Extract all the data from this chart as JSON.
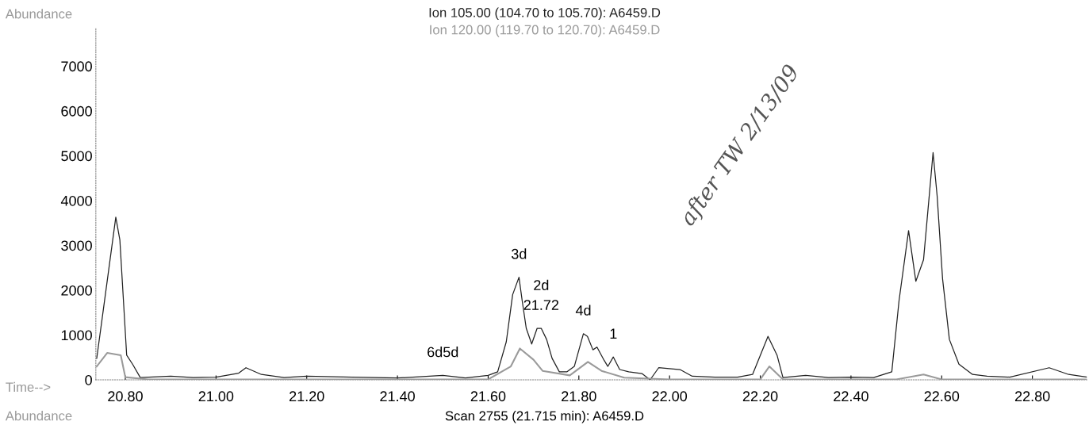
{
  "chart_data": {
    "type": "line",
    "xlabel": "Time-->",
    "ylabel": "Abundance",
    "xlim": [
      20.735,
      22.92
    ],
    "ylim": [
      0,
      7850
    ],
    "xticks": [
      {
        "value": 20.8,
        "label": "20.80"
      },
      {
        "value": 21.0,
        "label": "21.00"
      },
      {
        "value": 21.2,
        "label": "21.20"
      },
      {
        "value": 21.4,
        "label": "21.40"
      },
      {
        "value": 21.6,
        "label": "21.60"
      },
      {
        "value": 21.8,
        "label": "21.80"
      },
      {
        "value": 22.0,
        "label": "22.00"
      },
      {
        "value": 22.2,
        "label": "22.20"
      },
      {
        "value": 22.4,
        "label": "22.40"
      },
      {
        "value": 22.6,
        "label": "22.60"
      },
      {
        "value": 22.8,
        "label": "22.80"
      }
    ],
    "yticks": [
      0,
      1000,
      2000,
      3000,
      4000,
      5000,
      6000,
      7000
    ],
    "grid": false,
    "legend": "top",
    "line_style": "solid",
    "marker": "none",
    "series": [
      {
        "name": "Ion 105.00 (104.70 to 105.70): A6459.D",
        "color": "#222222",
        "x": [
          20.737,
          20.75,
          20.779,
          20.788,
          20.803,
          20.816,
          20.833,
          20.9,
          20.95,
          21.0,
          21.05,
          21.066,
          21.1,
          21.15,
          21.2,
          21.3,
          21.4,
          21.5,
          21.55,
          21.6,
          21.621,
          21.64,
          21.654,
          21.668,
          21.675,
          21.684,
          21.696,
          21.708,
          21.717,
          21.729,
          21.741,
          21.757,
          21.774,
          21.79,
          21.81,
          21.819,
          21.831,
          21.84,
          21.856,
          21.864,
          21.876,
          21.89,
          21.91,
          21.939,
          21.957,
          21.976,
          22.023,
          22.05,
          22.1,
          22.15,
          22.183,
          22.217,
          22.237,
          22.25,
          22.3,
          22.35,
          22.4,
          22.45,
          22.49,
          22.506,
          22.527,
          22.543,
          22.56,
          22.581,
          22.59,
          22.602,
          22.617,
          22.638,
          22.668,
          22.7,
          22.75,
          22.837,
          22.88,
          22.92
        ],
        "values": [
          480,
          1450,
          3630,
          3120,
          550,
          350,
          50,
          80,
          50,
          60,
          150,
          270,
          120,
          50,
          80,
          60,
          40,
          100,
          40,
          100,
          180,
          850,
          1900,
          2290,
          1770,
          1150,
          800,
          1150,
          1150,
          900,
          480,
          180,
          180,
          300,
          1030,
          970,
          670,
          730,
          430,
          300,
          510,
          230,
          180,
          140,
          0,
          270,
          230,
          80,
          60,
          60,
          120,
          970,
          550,
          50,
          100,
          50,
          60,
          50,
          180,
          1770,
          3330,
          2200,
          2680,
          5070,
          4100,
          2250,
          900,
          350,
          120,
          80,
          60,
          270,
          120,
          60
        ]
      },
      {
        "name": "Ion 120.00 (119.70 to 120.70): A6459.D",
        "color": "#9a9a9a",
        "x": [
          20.737,
          20.76,
          20.79,
          20.8,
          20.85,
          21.0,
          21.2,
          21.4,
          21.6,
          21.65,
          21.67,
          21.7,
          21.72,
          21.78,
          21.82,
          21.85,
          21.9,
          22.0,
          22.2,
          22.22,
          22.25,
          22.5,
          22.56,
          22.6,
          22.8,
          22.92
        ],
        "values": [
          300,
          600,
          550,
          60,
          10,
          10,
          10,
          10,
          10,
          300,
          700,
          450,
          200,
          100,
          400,
          200,
          50,
          10,
          10,
          300,
          10,
          10,
          120,
          10,
          10,
          10
        ]
      }
    ],
    "annotations": [
      {
        "text": "3d",
        "x": 21.668,
        "y": 2290
      },
      {
        "text": "21.72",
        "x": 21.717,
        "y": 1150
      },
      {
        "text": "2d",
        "x": 21.717,
        "y": 1150
      },
      {
        "text": "4d",
        "x": 21.81,
        "y": 1030
      },
      {
        "text": "1",
        "x": 21.876,
        "y": 510
      },
      {
        "text": "6d5d",
        "x": 21.5,
        "y": 100
      },
      "after TW 2/13/09",
      "Abundance",
      "Scan 2755 (21.715 min): A6459.D"
    ]
  }
}
